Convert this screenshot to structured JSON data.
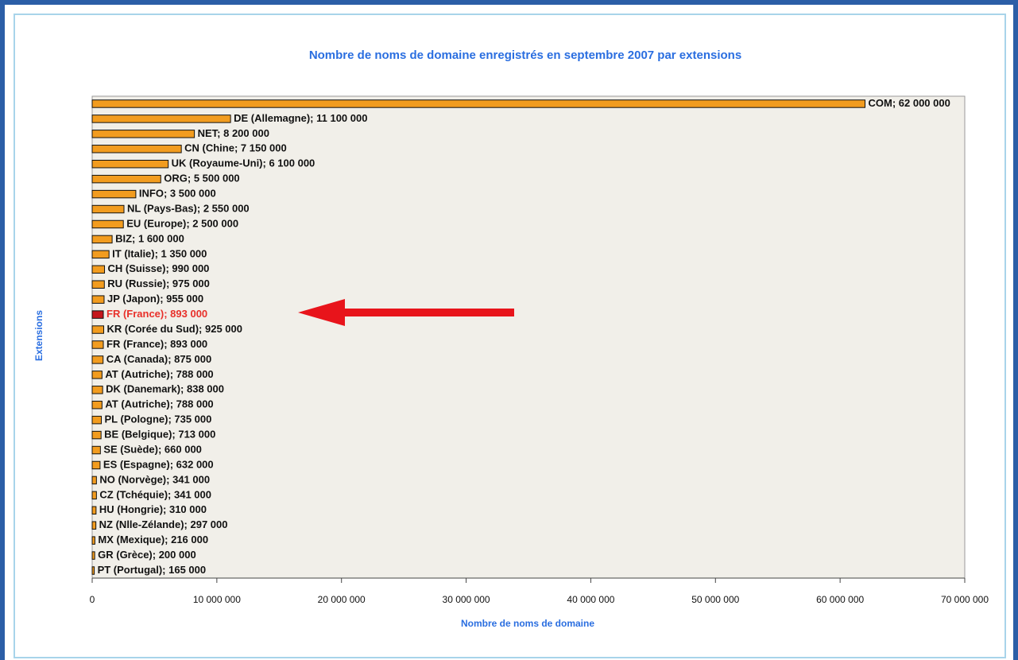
{
  "chart_data": {
    "type": "barh",
    "title": "Nombre de noms de domaine enregistrés en septembre 2007 par extensions",
    "x_label": "Nombre de noms de domaine",
    "y_label": "Extensions",
    "values": [
      62000000,
      11100000,
      8200000,
      7150000,
      6100000,
      5500000,
      3500000,
      2550000,
      2500000,
      1600000,
      1350000,
      990000,
      975000,
      955000,
      893000,
      925000,
      893000,
      875000,
      788000,
      838000,
      788000,
      735000,
      713000,
      660000,
      632000,
      341000,
      341000,
      310000,
      297000,
      216000,
      200000,
      165000
    ],
    "value_labels": [
      "COM; 62 000 000",
      "DE (Allemagne); 11 100 000",
      "NET; 8 200 000",
      "CN (Chine; 7 150 000",
      "UK (Royaume-Uni); 6 100 000",
      "ORG; 5 500 000",
      "INFO; 3 500 000",
      "NL (Pays-Bas); 2 550 000",
      "EU (Europe); 2 500 000",
      "BIZ; 1 600 000",
      "IT (Italie); 1 350 000",
      "CH (Suisse); 990 000",
      "RU (Russie); 975 000",
      "JP (Japon); 955 000",
      "FR (France); 893 000",
      "KR  (Corée du Sud); 925 000",
      "FR (France); 893 000",
      "CA (Canada); 875 000",
      "AT (Autriche); 788 000",
      "DK (Danemark); 838 000",
      "AT (Autriche); 788 000",
      "PL (Pologne); 735 000",
      "BE (Belgique); 713 000",
      "SE (Suède); 660 000",
      "ES (Espagne); 632 000",
      "NO (Norvège); 341 000",
      "CZ (Tchéquie); 341 000",
      "HU (Hongrie); 310 000",
      "NZ (Nlle-Zélande); 297 000",
      "MX (Mexique); 216 000",
      "GR (Grèce); 200 000",
      "PT (Portugal); 165 000"
    ],
    "color": "#f29c1f",
    "highlight": {
      "index": 14,
      "bar_color": "#c4161c",
      "label_color": "#e8302a"
    },
    "xlim": [
      0,
      70000000
    ],
    "xticks": [
      0,
      {
        "value": 10000000,
        "label": "10 000 000"
      },
      {
        "value": 20000000,
        "label": "20 000 000"
      },
      {
        "value": 30000000,
        "label": "30 000 000"
      },
      {
        "value": 40000000,
        "label": "40 000 000"
      },
      {
        "value": 50000000,
        "label": "50 000 000"
      },
      {
        "value": 60000000,
        "label": "60 000 000"
      },
      {
        "value": 70000000,
        "label": "70 000 000"
      }
    ]
  }
}
